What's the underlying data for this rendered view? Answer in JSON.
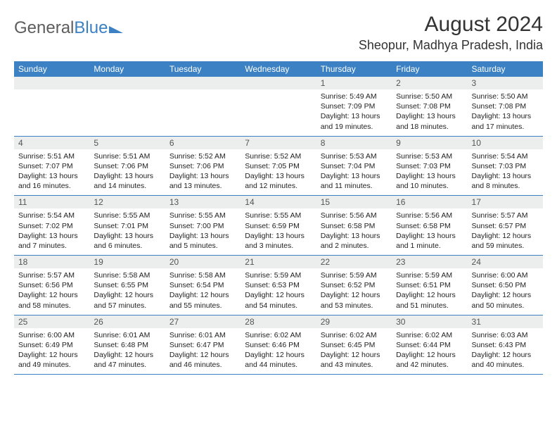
{
  "logo": {
    "part1": "General",
    "part2": "Blue"
  },
  "header": {
    "month_title": "August 2024",
    "location": "Sheopur, Madhya Pradesh, India"
  },
  "colors": {
    "accent": "#3b81c3",
    "header_row_bg": "#3b81c3",
    "header_row_text": "#ffffff",
    "daynum_bg": "#eceded",
    "text": "#222222"
  },
  "day_names": [
    "Sunday",
    "Monday",
    "Tuesday",
    "Wednesday",
    "Thursday",
    "Friday",
    "Saturday"
  ],
  "weeks": [
    [
      {
        "n": "",
        "sunrise": "",
        "sunset": "",
        "daylight": ""
      },
      {
        "n": "",
        "sunrise": "",
        "sunset": "",
        "daylight": ""
      },
      {
        "n": "",
        "sunrise": "",
        "sunset": "",
        "daylight": ""
      },
      {
        "n": "",
        "sunrise": "",
        "sunset": "",
        "daylight": ""
      },
      {
        "n": "1",
        "sunrise": "Sunrise: 5:49 AM",
        "sunset": "Sunset: 7:09 PM",
        "daylight": "Daylight: 13 hours and 19 minutes."
      },
      {
        "n": "2",
        "sunrise": "Sunrise: 5:50 AM",
        "sunset": "Sunset: 7:08 PM",
        "daylight": "Daylight: 13 hours and 18 minutes."
      },
      {
        "n": "3",
        "sunrise": "Sunrise: 5:50 AM",
        "sunset": "Sunset: 7:08 PM",
        "daylight": "Daylight: 13 hours and 17 minutes."
      }
    ],
    [
      {
        "n": "4",
        "sunrise": "Sunrise: 5:51 AM",
        "sunset": "Sunset: 7:07 PM",
        "daylight": "Daylight: 13 hours and 16 minutes."
      },
      {
        "n": "5",
        "sunrise": "Sunrise: 5:51 AM",
        "sunset": "Sunset: 7:06 PM",
        "daylight": "Daylight: 13 hours and 14 minutes."
      },
      {
        "n": "6",
        "sunrise": "Sunrise: 5:52 AM",
        "sunset": "Sunset: 7:06 PM",
        "daylight": "Daylight: 13 hours and 13 minutes."
      },
      {
        "n": "7",
        "sunrise": "Sunrise: 5:52 AM",
        "sunset": "Sunset: 7:05 PM",
        "daylight": "Daylight: 13 hours and 12 minutes."
      },
      {
        "n": "8",
        "sunrise": "Sunrise: 5:53 AM",
        "sunset": "Sunset: 7:04 PM",
        "daylight": "Daylight: 13 hours and 11 minutes."
      },
      {
        "n": "9",
        "sunrise": "Sunrise: 5:53 AM",
        "sunset": "Sunset: 7:03 PM",
        "daylight": "Daylight: 13 hours and 10 minutes."
      },
      {
        "n": "10",
        "sunrise": "Sunrise: 5:54 AM",
        "sunset": "Sunset: 7:03 PM",
        "daylight": "Daylight: 13 hours and 8 minutes."
      }
    ],
    [
      {
        "n": "11",
        "sunrise": "Sunrise: 5:54 AM",
        "sunset": "Sunset: 7:02 PM",
        "daylight": "Daylight: 13 hours and 7 minutes."
      },
      {
        "n": "12",
        "sunrise": "Sunrise: 5:55 AM",
        "sunset": "Sunset: 7:01 PM",
        "daylight": "Daylight: 13 hours and 6 minutes."
      },
      {
        "n": "13",
        "sunrise": "Sunrise: 5:55 AM",
        "sunset": "Sunset: 7:00 PM",
        "daylight": "Daylight: 13 hours and 5 minutes."
      },
      {
        "n": "14",
        "sunrise": "Sunrise: 5:55 AM",
        "sunset": "Sunset: 6:59 PM",
        "daylight": "Daylight: 13 hours and 3 minutes."
      },
      {
        "n": "15",
        "sunrise": "Sunrise: 5:56 AM",
        "sunset": "Sunset: 6:58 PM",
        "daylight": "Daylight: 13 hours and 2 minutes."
      },
      {
        "n": "16",
        "sunrise": "Sunrise: 5:56 AM",
        "sunset": "Sunset: 6:58 PM",
        "daylight": "Daylight: 13 hours and 1 minute."
      },
      {
        "n": "17",
        "sunrise": "Sunrise: 5:57 AM",
        "sunset": "Sunset: 6:57 PM",
        "daylight": "Daylight: 12 hours and 59 minutes."
      }
    ],
    [
      {
        "n": "18",
        "sunrise": "Sunrise: 5:57 AM",
        "sunset": "Sunset: 6:56 PM",
        "daylight": "Daylight: 12 hours and 58 minutes."
      },
      {
        "n": "19",
        "sunrise": "Sunrise: 5:58 AM",
        "sunset": "Sunset: 6:55 PM",
        "daylight": "Daylight: 12 hours and 57 minutes."
      },
      {
        "n": "20",
        "sunrise": "Sunrise: 5:58 AM",
        "sunset": "Sunset: 6:54 PM",
        "daylight": "Daylight: 12 hours and 55 minutes."
      },
      {
        "n": "21",
        "sunrise": "Sunrise: 5:59 AM",
        "sunset": "Sunset: 6:53 PM",
        "daylight": "Daylight: 12 hours and 54 minutes."
      },
      {
        "n": "22",
        "sunrise": "Sunrise: 5:59 AM",
        "sunset": "Sunset: 6:52 PM",
        "daylight": "Daylight: 12 hours and 53 minutes."
      },
      {
        "n": "23",
        "sunrise": "Sunrise: 5:59 AM",
        "sunset": "Sunset: 6:51 PM",
        "daylight": "Daylight: 12 hours and 51 minutes."
      },
      {
        "n": "24",
        "sunrise": "Sunrise: 6:00 AM",
        "sunset": "Sunset: 6:50 PM",
        "daylight": "Daylight: 12 hours and 50 minutes."
      }
    ],
    [
      {
        "n": "25",
        "sunrise": "Sunrise: 6:00 AM",
        "sunset": "Sunset: 6:49 PM",
        "daylight": "Daylight: 12 hours and 49 minutes."
      },
      {
        "n": "26",
        "sunrise": "Sunrise: 6:01 AM",
        "sunset": "Sunset: 6:48 PM",
        "daylight": "Daylight: 12 hours and 47 minutes."
      },
      {
        "n": "27",
        "sunrise": "Sunrise: 6:01 AM",
        "sunset": "Sunset: 6:47 PM",
        "daylight": "Daylight: 12 hours and 46 minutes."
      },
      {
        "n": "28",
        "sunrise": "Sunrise: 6:02 AM",
        "sunset": "Sunset: 6:46 PM",
        "daylight": "Daylight: 12 hours and 44 minutes."
      },
      {
        "n": "29",
        "sunrise": "Sunrise: 6:02 AM",
        "sunset": "Sunset: 6:45 PM",
        "daylight": "Daylight: 12 hours and 43 minutes."
      },
      {
        "n": "30",
        "sunrise": "Sunrise: 6:02 AM",
        "sunset": "Sunset: 6:44 PM",
        "daylight": "Daylight: 12 hours and 42 minutes."
      },
      {
        "n": "31",
        "sunrise": "Sunrise: 6:03 AM",
        "sunset": "Sunset: 6:43 PM",
        "daylight": "Daylight: 12 hours and 40 minutes."
      }
    ]
  ]
}
